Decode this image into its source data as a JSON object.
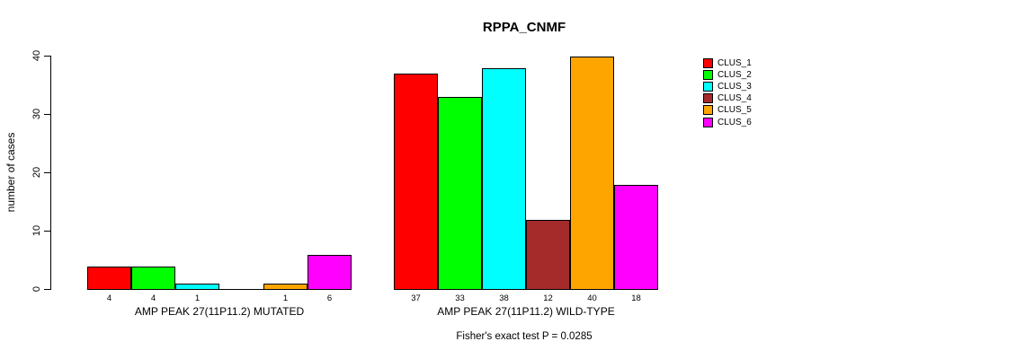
{
  "title": "RPPA_CNMF",
  "footer": "Fisher's exact test P = 0.0285",
  "y_axis": {
    "label": "number of cases",
    "tick_labels": [
      "0",
      "10",
      "20",
      "30",
      "40"
    ]
  },
  "legend": {
    "entries": [
      {
        "label": "CLUS_1",
        "color": "#ff0000"
      },
      {
        "label": "CLUS_2",
        "color": "#00ff00"
      },
      {
        "label": "CLUS_3",
        "color": "#00ffff"
      },
      {
        "label": "CLUS_4",
        "color": "#a52a2a"
      },
      {
        "label": "CLUS_5",
        "color": "#ffa500"
      },
      {
        "label": "CLUS_6",
        "color": "#ff00ff"
      }
    ]
  },
  "chart_data": {
    "type": "bar",
    "title": "RPPA_CNMF",
    "xlabel": "",
    "ylabel": "number of cases",
    "ylim": [
      0,
      40
    ],
    "yticks": [
      0,
      10,
      20,
      30,
      40
    ],
    "grid": false,
    "legend_position": "right",
    "bar_value_labels": true,
    "series_names": [
      "CLUS_1",
      "CLUS_2",
      "CLUS_3",
      "CLUS_4",
      "CLUS_5",
      "CLUS_6"
    ],
    "series_colors": [
      "#ff0000",
      "#00ff00",
      "#00ffff",
      "#a52a2a",
      "#ffa500",
      "#ff00ff"
    ],
    "groups": [
      {
        "label": "AMP PEAK 27(11P11.2) MUTATED",
        "values": [
          4,
          4,
          1,
          0,
          1,
          6
        ]
      },
      {
        "label": "AMP PEAK 27(11P11.2) WILD-TYPE",
        "values": [
          37,
          33,
          38,
          12,
          40,
          18
        ]
      }
    ],
    "annotation": "Fisher's exact test P = 0.0285"
  }
}
